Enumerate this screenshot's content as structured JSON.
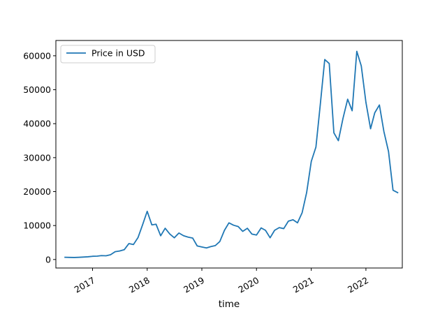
{
  "chart_data": {
    "type": "line",
    "xlabel": "time",
    "ylabel": "",
    "title": "",
    "x_tick_labels": [
      "2017",
      "2018",
      "2019",
      "2020",
      "2021",
      "2022"
    ],
    "y_tick_labels": [
      "0",
      "10000",
      "20000",
      "30000",
      "40000",
      "50000",
      "60000"
    ],
    "y_ticks": [
      0,
      10000,
      20000,
      30000,
      40000,
      50000,
      60000
    ],
    "xlim": [
      "2016-05-01",
      "2022-09-01"
    ],
    "ylim": [
      -2500,
      64500
    ],
    "grid": false,
    "legend_position": "top-left",
    "series": [
      {
        "name": "Price in USD",
        "color": "#1f77b4",
        "points": [
          [
            "2016-07-01",
            650
          ],
          [
            "2016-08-01",
            620
          ],
          [
            "2016-09-01",
            600
          ],
          [
            "2016-10-01",
            650
          ],
          [
            "2016-11-01",
            720
          ],
          [
            "2016-12-01",
            800
          ],
          [
            "2017-01-01",
            950
          ],
          [
            "2017-02-01",
            1000
          ],
          [
            "2017-03-01",
            1150
          ],
          [
            "2017-04-01",
            1100
          ],
          [
            "2017-05-01",
            1400
          ],
          [
            "2017-06-01",
            2300
          ],
          [
            "2017-07-01",
            2500
          ],
          [
            "2017-08-01",
            2900
          ],
          [
            "2017-09-01",
            4700
          ],
          [
            "2017-10-01",
            4400
          ],
          [
            "2017-11-01",
            6500
          ],
          [
            "2017-12-01",
            10200
          ],
          [
            "2018-01-01",
            14200
          ],
          [
            "2018-02-01",
            10200
          ],
          [
            "2018-03-01",
            10400
          ],
          [
            "2018-04-01",
            7000
          ],
          [
            "2018-05-01",
            9200
          ],
          [
            "2018-06-01",
            7500
          ],
          [
            "2018-07-01",
            6400
          ],
          [
            "2018-08-01",
            7800
          ],
          [
            "2018-09-01",
            7000
          ],
          [
            "2018-10-01",
            6600
          ],
          [
            "2018-11-01",
            6300
          ],
          [
            "2018-12-01",
            4000
          ],
          [
            "2019-01-01",
            3700
          ],
          [
            "2019-02-01",
            3400
          ],
          [
            "2019-03-01",
            3800
          ],
          [
            "2019-04-01",
            4100
          ],
          [
            "2019-05-01",
            5300
          ],
          [
            "2019-06-01",
            8600
          ],
          [
            "2019-07-01",
            10800
          ],
          [
            "2019-08-01",
            10100
          ],
          [
            "2019-09-01",
            9700
          ],
          [
            "2019-10-01",
            8300
          ],
          [
            "2019-11-01",
            9200
          ],
          [
            "2019-12-01",
            7500
          ],
          [
            "2020-01-01",
            7200
          ],
          [
            "2020-02-01",
            9300
          ],
          [
            "2020-03-01",
            8600
          ],
          [
            "2020-04-01",
            6400
          ],
          [
            "2020-05-01",
            8600
          ],
          [
            "2020-06-01",
            9400
          ],
          [
            "2020-07-01",
            9100
          ],
          [
            "2020-08-01",
            11300
          ],
          [
            "2020-09-01",
            11700
          ],
          [
            "2020-10-01",
            10800
          ],
          [
            "2020-11-01",
            13800
          ],
          [
            "2020-12-01",
            19700
          ],
          [
            "2021-01-01",
            28900
          ],
          [
            "2021-02-01",
            33100
          ],
          [
            "2021-03-01",
            45100
          ],
          [
            "2021-04-01",
            58900
          ],
          [
            "2021-05-01",
            57700
          ],
          [
            "2021-06-01",
            37300
          ],
          [
            "2021-07-01",
            35000
          ],
          [
            "2021-08-01",
            41600
          ],
          [
            "2021-09-01",
            47200
          ],
          [
            "2021-10-01",
            43800
          ],
          [
            "2021-11-01",
            61300
          ],
          [
            "2021-12-01",
            57000
          ],
          [
            "2022-01-01",
            46300
          ],
          [
            "2022-02-01",
            38500
          ],
          [
            "2022-03-01",
            43200
          ],
          [
            "2022-04-01",
            45500
          ],
          [
            "2022-05-01",
            37700
          ],
          [
            "2022-06-01",
            31800
          ],
          [
            "2022-07-01",
            20400
          ],
          [
            "2022-08-01",
            19700
          ]
        ]
      }
    ]
  }
}
